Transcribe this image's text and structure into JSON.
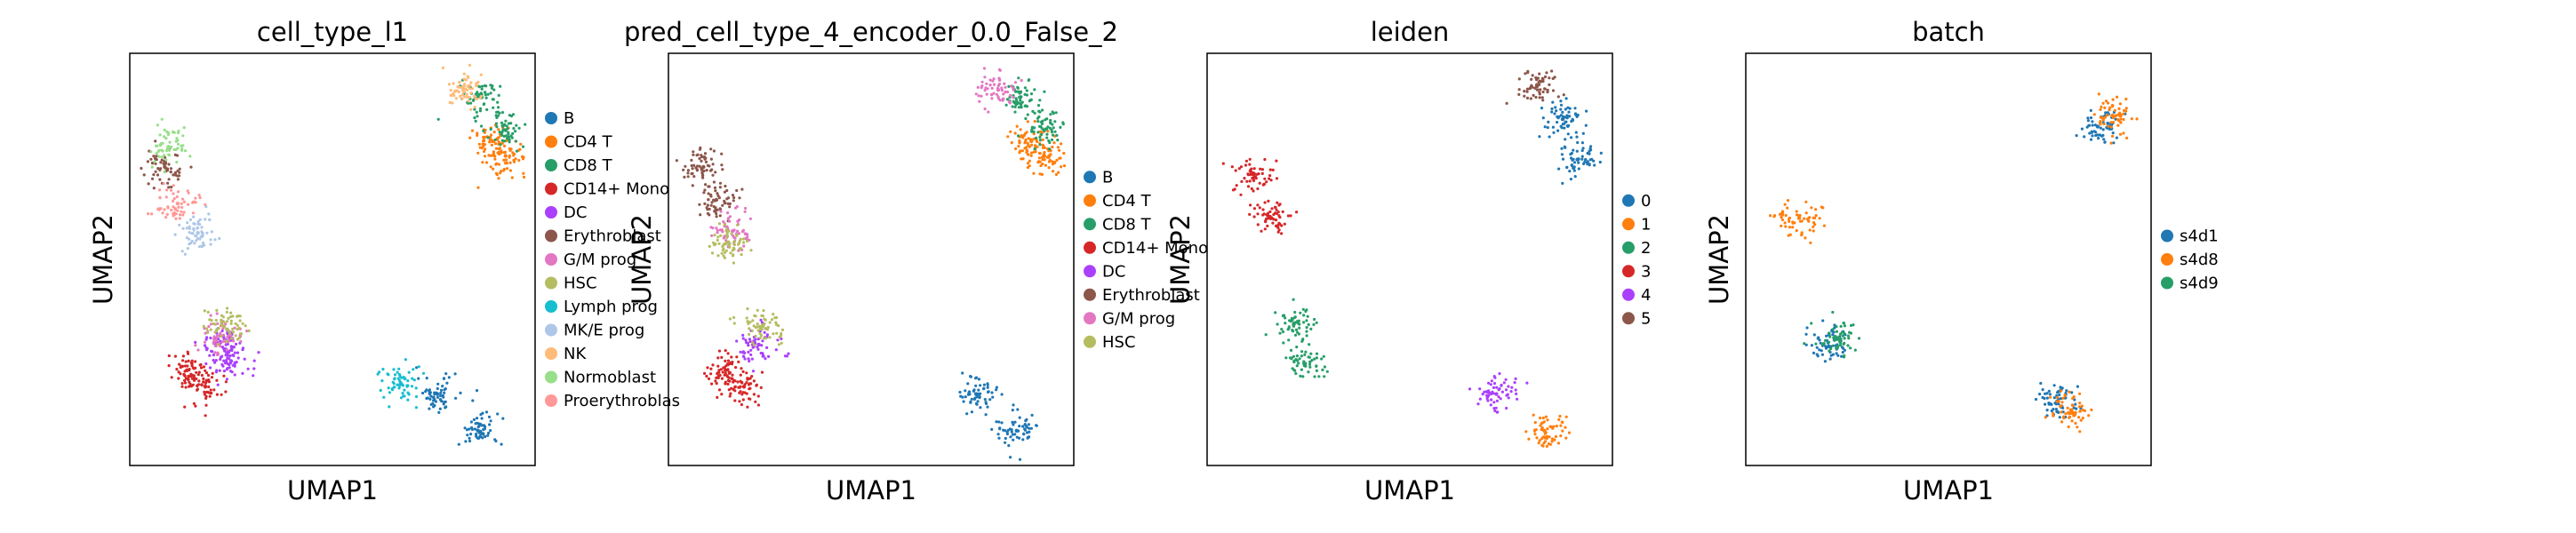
{
  "chart_data": [
    {
      "type": "scatter",
      "title": "cell_type_l1",
      "xlabel": "UMAP1",
      "ylabel": "UMAP2",
      "legend": "right",
      "grid": false,
      "colors": {
        "B": "#1f77b4",
        "CD4 T": "#ff7f0e",
        "CD8 T": "#279e68",
        "CD14+ Mono": "#d62728",
        "DC": "#aa40fc",
        "Erythroblast": "#8c564b",
        "G/M prog": "#e377c2",
        "HSC": "#b5bd61",
        "Lymph prog": "#17becf",
        "MK/E prog": "#aec7e8",
        "NK": "#ffbb78",
        "Normoblast": "#98df8a",
        "Proerythroblast": "#ff9896"
      },
      "legend_labels": [
        "B",
        "CD4 T",
        "CD8 T",
        "CD14+ Mono",
        "DC",
        "Erythroblast",
        "G/M prog",
        "HSC",
        "Lymph prog",
        "MK/E prog",
        "NK",
        "Normoblast",
        "Proerythroblas"
      ],
      "series": [
        {
          "name": "B",
          "x": [
            6.2,
            8.4
          ],
          "y": [
            -7.6,
            -9.6
          ]
        },
        {
          "name": "CD4 T",
          "x": [
            9.2,
            9.9
          ],
          "y": [
            6.2,
            5.4
          ]
        },
        {
          "name": "CD8 T",
          "x": [
            8.6,
            9.9
          ],
          "y": [
            8.6,
            6.8
          ]
        },
        {
          "name": "CD14+ Mono",
          "x": [
            -7.4,
            -6.4
          ],
          "y": [
            -6.3,
            -7.2
          ]
        },
        {
          "name": "DC",
          "x": [
            -5.6,
            -5.0
          ],
          "y": [
            -4.8,
            -5.8
          ]
        },
        {
          "name": "Erythroblast",
          "x": [
            -8.6
          ],
          "y": [
            4.8
          ]
        },
        {
          "name": "G/M prog",
          "x": [
            -5.6
          ],
          "y": [
            -4.4
          ]
        },
        {
          "name": "HSC",
          "x": [
            -5.4
          ],
          "y": [
            -3.9
          ]
        },
        {
          "name": "Lymph prog",
          "x": [
            4.2
          ],
          "y": [
            -7.0
          ]
        },
        {
          "name": "MK/E prog",
          "x": [
            -6.8
          ],
          "y": [
            1.2
          ]
        },
        {
          "name": "NK",
          "x": [
            7.6
          ],
          "y": [
            9.0
          ]
        },
        {
          "name": "Normoblast",
          "x": [
            -8.4
          ],
          "y": [
            5.9
          ]
        },
        {
          "name": "Proerythroblast",
          "x": [
            -7.9
          ],
          "y": [
            2.8
          ]
        }
      ]
    },
    {
      "type": "scatter",
      "title": "pred_cell_type_4_encoder_0.0_False_2",
      "xlabel": "UMAP1",
      "ylabel": "UMAP2",
      "legend": "right",
      "grid": false,
      "colors": {
        "B": "#1f77b4",
        "CD4 T": "#ff7f0e",
        "CD8 T": "#279e68",
        "CD14+ Mono": "#d62728",
        "DC": "#aa40fc",
        "Erythroblast": "#8c564b",
        "G/M prog": "#e377c2",
        "HSC": "#b5bd61"
      },
      "legend_labels": [
        "B",
        "CD4 T",
        "CD8 T",
        "CD14+ Mono",
        "DC",
        "Erythroblast",
        "G/M prog",
        "HSC"
      ],
      "series": [
        {
          "name": "B",
          "x": [
            6.2,
            8.4
          ],
          "y": [
            -7.6,
            -9.6
          ]
        },
        {
          "name": "CD4 T",
          "x": [
            9.2,
            9.9
          ],
          "y": [
            6.2,
            5.4
          ]
        },
        {
          "name": "CD8 T",
          "x": [
            8.6,
            9.9
          ],
          "y": [
            8.6,
            6.8
          ]
        },
        {
          "name": "CD14+ Mono",
          "x": [
            -7.4,
            -6.4
          ],
          "y": [
            -6.3,
            -7.2
          ]
        },
        {
          "name": "DC",
          "x": [
            -5.6
          ],
          "y": [
            -4.9
          ]
        },
        {
          "name": "Erythroblast",
          "x": [
            -8.6,
            -7.9
          ],
          "y": [
            4.8,
            3.0
          ]
        },
        {
          "name": "G/M prog",
          "x": [
            7.4,
            -7.0
          ],
          "y": [
            9.0,
            1.3
          ]
        },
        {
          "name": "HSC",
          "x": [
            -5.4,
            -7.2
          ],
          "y": [
            -3.9,
            0.6
          ]
        }
      ]
    },
    {
      "type": "scatter",
      "title": "leiden",
      "xlabel": "UMAP1",
      "ylabel": "UMAP2",
      "legend": "right",
      "grid": false,
      "colors": {
        "0": "#1f77b4",
        "1": "#ff7f0e",
        "2": "#279e68",
        "3": "#d62728",
        "4": "#aa40fc",
        "5": "#8c564b"
      },
      "legend_labels": [
        "0",
        "1",
        "2",
        "3",
        "4",
        "5"
      ],
      "series": [
        {
          "name": "0",
          "x": [
            8.8,
            9.6
          ],
          "y": [
            7.4,
            5.2
          ]
        },
        {
          "name": "1",
          "x": [
            7.8
          ],
          "y": [
            -9.6
          ]
        },
        {
          "name": "2",
          "x": [
            -5.8,
            -5.2
          ],
          "y": [
            -3.8,
            -6.0
          ]
        },
        {
          "name": "3",
          "x": [
            -8.0,
            -7.0
          ],
          "y": [
            4.4,
            2.0
          ]
        },
        {
          "name": "4",
          "x": [
            5.2
          ],
          "y": [
            -7.6
          ]
        },
        {
          "name": "5",
          "x": [
            7.4
          ],
          "y": [
            9.2
          ]
        }
      ]
    },
    {
      "type": "scatter",
      "title": "batch",
      "xlabel": "UMAP1",
      "ylabel": "UMAP2",
      "legend": "right",
      "grid": false,
      "colors": {
        "s4d1": "#1f77b4",
        "s4d8": "#ff7f0e",
        "s4d9": "#279e68"
      },
      "legend_labels": [
        "s4d1",
        "s4d8",
        "s4d9"
      ],
      "series": [
        {
          "name": "s4d1",
          "x": [
            8.6,
            6.4,
            -6.0
          ],
          "y": [
            7.0,
            -8.0,
            -5.0
          ]
        },
        {
          "name": "s4d8",
          "x": [
            9.4,
            7.2,
            -7.6
          ],
          "y": [
            7.6,
            -8.6,
            2.0
          ]
        },
        {
          "name": "s4d9",
          "x": [
            -5.6
          ],
          "y": [
            -4.6
          ]
        }
      ]
    }
  ]
}
